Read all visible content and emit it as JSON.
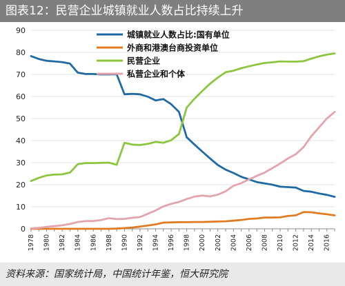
{
  "title": "图表12：民营企业城镇就业人数占比持续上升",
  "source": "资料来源：国家统计局，中国统计年鉴，恒大研究院",
  "chart_data": {
    "type": "line",
    "title": "图表12：民营企业城镇就业人数占比持续上升",
    "xlabel": "",
    "ylabel": "",
    "ylim": [
      0,
      90
    ],
    "xlim": [
      1978,
      2017
    ],
    "yticks": [
      "0",
      "10",
      "20",
      "30",
      "40",
      "50",
      "60",
      "70",
      "80",
      "90"
    ],
    "xticks": [
      "1978",
      "1980",
      "1982",
      "1984",
      "1986",
      "1988",
      "1990",
      "1992",
      "1994",
      "1996",
      "1998",
      "2000",
      "2002",
      "2004",
      "2006",
      "2008",
      "2010",
      "2012",
      "2014",
      "2016"
    ],
    "grid": "horizontal",
    "legend": "top-center",
    "x": [
      1978,
      1979,
      1980,
      1981,
      1982,
      1983,
      1984,
      1985,
      1986,
      1987,
      1988,
      1989,
      1990,
      1991,
      1992,
      1993,
      1994,
      1995,
      1996,
      1997,
      1998,
      1999,
      2000,
      2001,
      2002,
      2003,
      2004,
      2005,
      2006,
      2007,
      2008,
      2009,
      2010,
      2011,
      2012,
      2013,
      2014,
      2015,
      2016,
      2017
    ],
    "series": [
      {
        "name": "城镇就业人数占比:国有单位",
        "color": "#1f6aa5",
        "values": [
          78.3,
          77.0,
          76.2,
          75.9,
          75.6,
          74.9,
          70.8,
          70.2,
          70.2,
          70.0,
          70.0,
          70.1,
          61.0,
          61.2,
          61.0,
          59.9,
          58.2,
          58.8,
          56.5,
          53.0,
          41.5,
          38.2,
          35.0,
          31.9,
          28.9,
          26.8,
          25.3,
          23.6,
          22.4,
          21.2,
          20.6,
          20.0,
          19.1,
          18.9,
          18.7,
          17.2,
          16.8,
          16.0,
          15.4,
          14.5
        ]
      },
      {
        "name": "外商和港澳台商投资单位",
        "color": "#e07b22",
        "values": [
          0,
          0,
          0,
          0,
          0,
          0,
          0,
          0,
          0,
          0,
          0,
          0.1,
          0.3,
          0.6,
          1.0,
          1.5,
          2.0,
          2.8,
          2.9,
          3.0,
          3.0,
          3.1,
          3.1,
          3.2,
          3.3,
          3.4,
          3.7,
          4.0,
          4.5,
          4.7,
          5.1,
          5.1,
          5.2,
          5.8,
          6.1,
          7.6,
          7.5,
          7.0,
          6.6,
          6.1
        ]
      },
      {
        "name": "民营企业",
        "color": "#8cc63f",
        "values": [
          21.7,
          23.1,
          24.2,
          24.6,
          24.7,
          25.5,
          29.3,
          29.8,
          29.8,
          29.9,
          30.0,
          29.0,
          39.0,
          38.2,
          38.0,
          38.5,
          39.4,
          39.0,
          40.2,
          43.0,
          55.0,
          59.0,
          62.5,
          65.8,
          68.6,
          71.0,
          71.7,
          72.8,
          73.7,
          74.5,
          75.2,
          75.5,
          75.9,
          75.8,
          75.8,
          76.0,
          77.2,
          78.2,
          79.0,
          79.5
        ]
      },
      {
        "name": "私营企业和个体",
        "color": "#e3a4ad",
        "values": [
          0.2,
          0.4,
          0.9,
          1.2,
          1.6,
          2.2,
          3.1,
          3.5,
          3.5,
          4.0,
          4.8,
          4.4,
          4.5,
          5.0,
          5.3,
          6.8,
          8.3,
          10.2,
          11.3,
          12.2,
          13.5,
          14.6,
          15.1,
          14.7,
          15.5,
          17.0,
          19.5,
          20.7,
          22.4,
          24.0,
          25.5,
          27.5,
          29.6,
          31.9,
          33.8,
          37.0,
          42.0,
          46.0,
          50.0,
          53.0
        ]
      }
    ]
  }
}
